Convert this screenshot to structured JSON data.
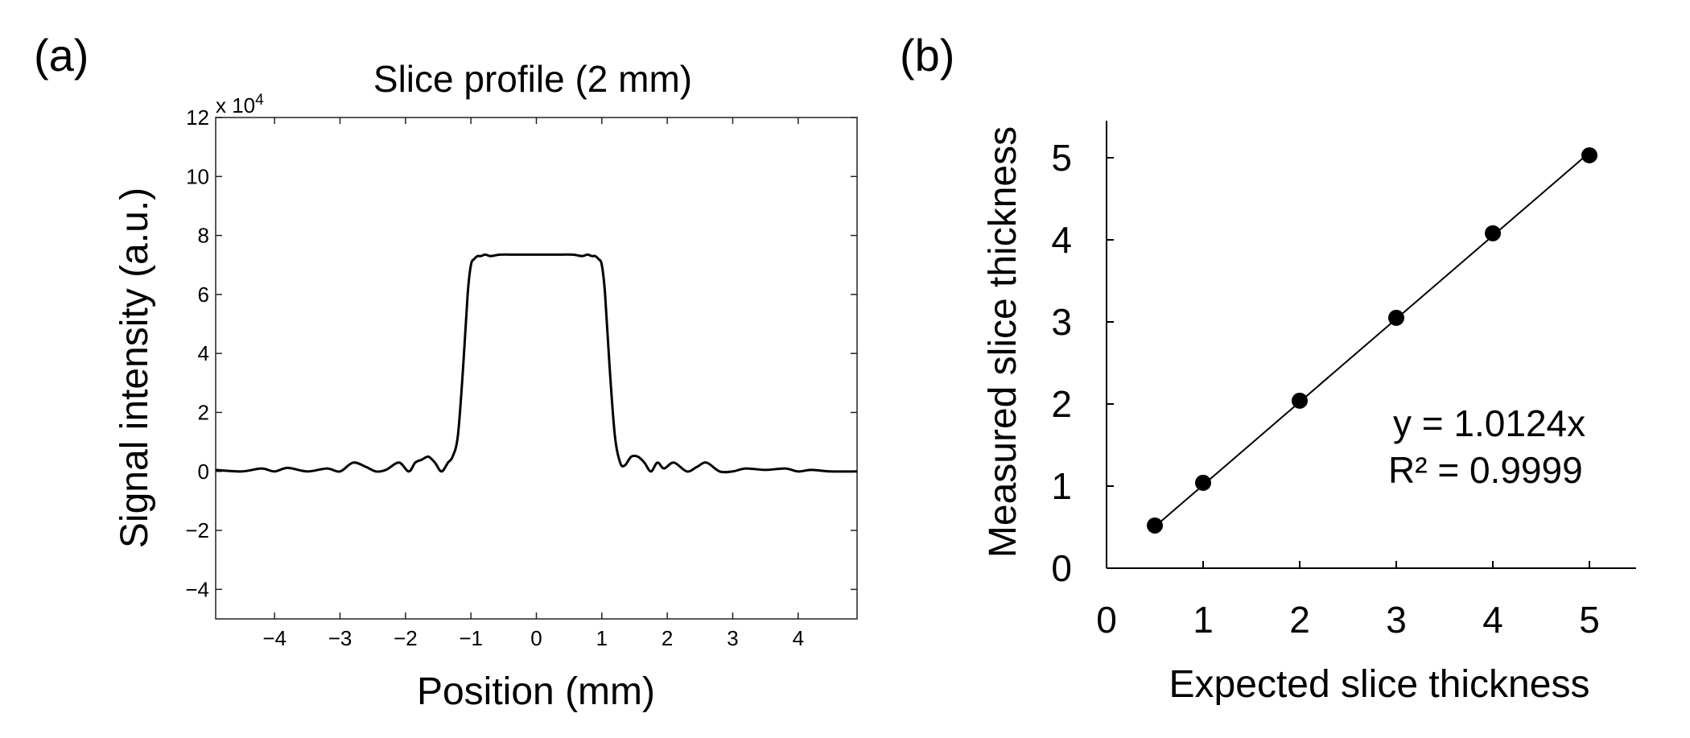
{
  "panels": {
    "a": {
      "label": "(a)"
    },
    "b": {
      "label": "(b)"
    }
  },
  "chart_data": [
    {
      "type": "line",
      "title": "Slice profile (2 mm)",
      "xlabel": "Position (mm)",
      "ylabel": "Signal intensity (a.u.)",
      "y_multiplier_label": "x 10",
      "y_multiplier_exponent": "4",
      "xlim": [
        -4.9,
        4.9
      ],
      "ylim": [
        -5,
        12
      ],
      "xticks": [
        -4,
        -3,
        -2,
        -1,
        0,
        1,
        2,
        3,
        4
      ],
      "xtick_labels": [
        "−4",
        "−3",
        "−2",
        "−1",
        "0",
        "1",
        "2",
        "3",
        "4"
      ],
      "yticks": [
        -4,
        -2,
        0,
        2,
        4,
        6,
        8,
        10,
        12
      ],
      "ytick_labels": [
        "−4",
        "−2",
        "0",
        "2",
        "4",
        "6",
        "8",
        "10",
        "12"
      ],
      "series": [
        {
          "name": "Slice profile",
          "x": [
            -4.9,
            -4.5,
            -4.2,
            -4.0,
            -3.8,
            -3.5,
            -3.2,
            -3.0,
            -2.8,
            -2.6,
            -2.45,
            -2.3,
            -2.1,
            -1.95,
            -1.85,
            -1.75,
            -1.65,
            -1.55,
            -1.45,
            -1.35,
            -1.28,
            -1.2,
            -1.12,
            -1.05,
            -1.0,
            -0.95,
            -0.9,
            -0.85,
            -0.78,
            -0.7,
            -0.55,
            -0.3,
            0.0,
            0.3,
            0.55,
            0.7,
            0.78,
            0.85,
            0.9,
            0.95,
            1.0,
            1.05,
            1.12,
            1.2,
            1.28,
            1.35,
            1.45,
            1.55,
            1.65,
            1.75,
            1.85,
            1.95,
            2.1,
            2.3,
            2.45,
            2.6,
            2.8,
            3.0,
            3.2,
            3.5,
            3.8,
            4.0,
            4.2,
            4.5,
            4.9
          ],
          "y": [
            0.05,
            0.0,
            0.1,
            0.0,
            0.12,
            0.0,
            0.1,
            0.0,
            0.3,
            0.15,
            0.0,
            0.05,
            0.3,
            0.0,
            0.3,
            0.4,
            0.5,
            0.3,
            0.0,
            0.3,
            0.5,
            1.2,
            3.5,
            6.0,
            7.0,
            7.2,
            7.3,
            7.3,
            7.35,
            7.3,
            7.35,
            7.35,
            7.35,
            7.35,
            7.35,
            7.3,
            7.35,
            7.3,
            7.3,
            7.2,
            7.0,
            6.0,
            3.5,
            1.2,
            0.3,
            0.2,
            0.5,
            0.5,
            0.3,
            0.0,
            0.3,
            0.1,
            0.3,
            0.0,
            0.15,
            0.3,
            0.0,
            0.0,
            0.1,
            0.05,
            0.1,
            0.0,
            0.05,
            0.0,
            0.0
          ]
        }
      ]
    },
    {
      "type": "scatter",
      "xlabel": "Expected slice thickness",
      "ylabel": "Measured slice thickness",
      "xlim": [
        0,
        5.5
      ],
      "ylim": [
        0,
        5.5
      ],
      "xticks": [
        0,
        1,
        2,
        3,
        4,
        5
      ],
      "xtick_labels": [
        "0",
        "1",
        "2",
        "3",
        "4",
        "5"
      ],
      "yticks": [
        0,
        1,
        2,
        3,
        4,
        5
      ],
      "ytick_labels": [
        "0",
        "1",
        "2",
        "3",
        "4",
        "5"
      ],
      "series": [
        {
          "name": "Measured",
          "x": [
            0.5,
            1,
            2,
            3,
            4,
            5
          ],
          "y": [
            0.52,
            1.04,
            2.04,
            3.05,
            4.08,
            5.03
          ]
        }
      ],
      "fit": {
        "slope": 1.0124,
        "x_range": [
          0.5,
          5
        ]
      },
      "annotations": [
        "y = 1.0124x",
        "R² = 0.9999"
      ]
    }
  ]
}
